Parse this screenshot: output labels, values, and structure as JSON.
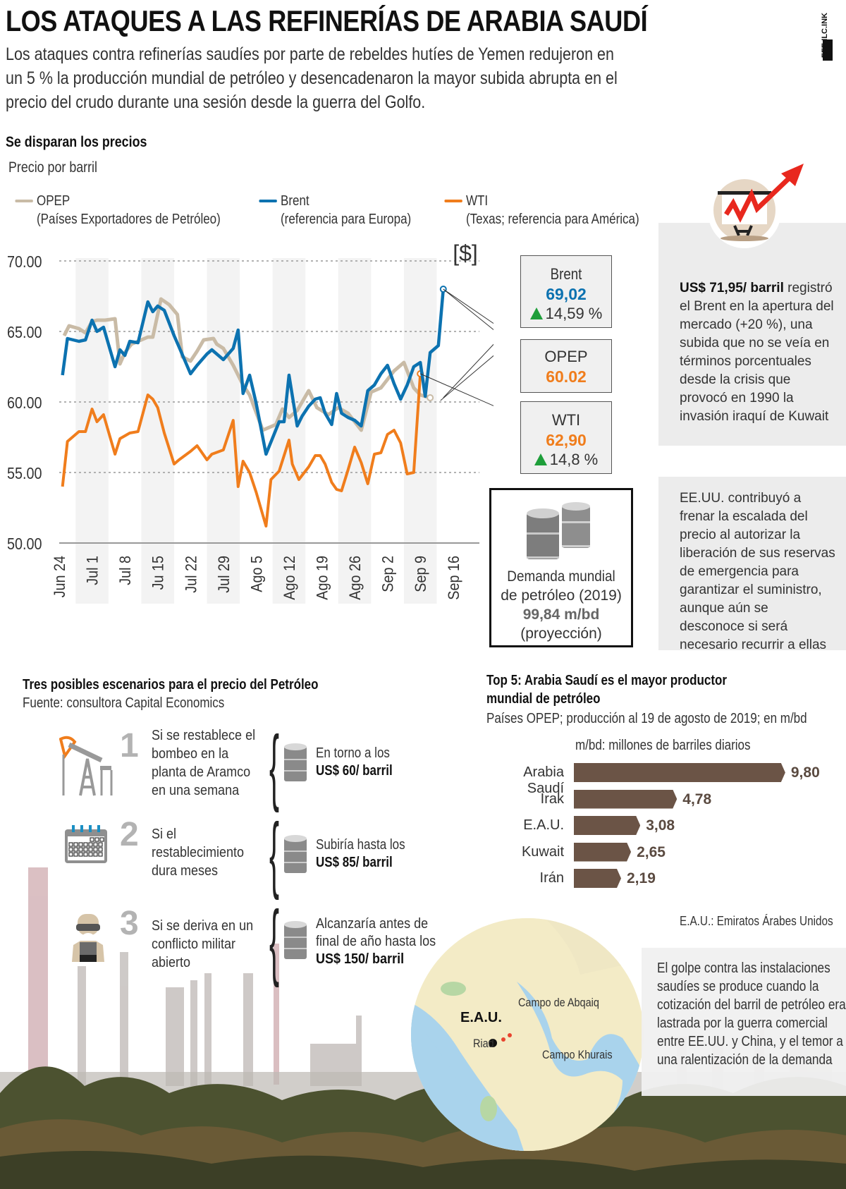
{
  "header": {
    "title": "LOS ATAQUES A LAS REFINERÍAS DE ARABIA SAUDÍ",
    "lead": "Los ataques contra refinerías saudíes por parte de rebeldes hutíes de Yemen redujeron en un 5 % la producción mundial de petróleo y desencadenaron la mayor subida abrupta en el precio del crudo durante una sesión desde la guerra del Golfo.",
    "logo_text": "EFE ILC.INK"
  },
  "chart_data": [
    {
      "type": "line",
      "title": "Se disparan los precios",
      "subtitle": "Precio por barril",
      "unit_label": "[$]",
      "xlabel": "",
      "ylabel": "",
      "ylim": [
        50,
        70
      ],
      "yticks": [
        "70.00",
        "65.00",
        "60.00",
        "55.00",
        "50.00"
      ],
      "ytick_values": [
        70,
        65,
        60,
        55,
        50
      ],
      "grid": true,
      "categories": [
        "Jun 24",
        "Jul 1",
        "Jul 8",
        "Ju 15",
        "Jul 22",
        "Jul 29",
        "Ago 5",
        "Ago 12",
        "Ago 19",
        "Ago 26",
        "Sep 2",
        "Sep 9",
        "Sep 16"
      ],
      "legend": [
        {
          "name": "OPEP",
          "desc": "(Países Exportadores de Petróleo)",
          "color": "#c9bba6"
        },
        {
          "name": "Brent",
          "desc": "(referencia para Europa)",
          "color": "#0c72b0"
        },
        {
          "name": "WTI",
          "desc": "(Texas; referencia para América)",
          "color": "#f07d1c"
        }
      ],
      "legend_position": "top",
      "x_span": [
        0,
        12.8
      ],
      "series": [
        {
          "name": "OPEP",
          "color": "#c9bba6",
          "x": [
            0.15,
            0.3,
            0.6,
            0.8,
            1.0,
            1.15,
            1.4,
            1.7,
            1.85,
            2.0,
            2.2,
            2.5,
            2.7,
            2.85,
            3.1,
            3.35,
            3.6,
            3.75,
            4.0,
            4.2,
            4.4,
            4.7,
            4.8,
            5.0,
            5.3,
            5.6,
            5.8,
            6.2,
            6.6,
            6.8,
            7.0,
            7.25,
            7.6,
            7.85,
            8.2,
            8.5,
            8.8,
            9.2,
            9.5,
            9.8,
            10.2,
            10.5,
            10.8,
            11.0,
            11.3,
            11.6,
            11.75,
            11.9,
            12.0
          ],
          "values": [
            64.7,
            65.4,
            65.2,
            64.9,
            65.7,
            65.8,
            65.8,
            65.9,
            62.7,
            63.5,
            64.1,
            64.4,
            64.6,
            64.6,
            67.3,
            66.9,
            66.2,
            63.2,
            62.9,
            63.6,
            64.4,
            64.5,
            64.1,
            63.8,
            62.6,
            61.2,
            60.5,
            58.0,
            58.4,
            59.5,
            58.9,
            59.4,
            60.8,
            59.6,
            59.1,
            59.6,
            59.2,
            58.0,
            60.7,
            61.0,
            62.2,
            62.8,
            61.0,
            60.5,
            60.3,
            null,
            null,
            null,
            null
          ]
        },
        {
          "name": "Brent",
          "color": "#0c72b0",
          "x": [
            0.1,
            0.25,
            0.6,
            0.8,
            1.0,
            1.15,
            1.35,
            1.7,
            1.85,
            2.0,
            2.15,
            2.4,
            2.7,
            2.85,
            3.0,
            3.2,
            3.5,
            3.65,
            4.0,
            4.2,
            4.5,
            4.65,
            5.0,
            5.3,
            5.45,
            5.6,
            5.8,
            6.0,
            6.3,
            6.7,
            6.85,
            7.0,
            7.25,
            7.4,
            7.6,
            7.8,
            7.95,
            8.1,
            8.3,
            8.45,
            8.6,
            8.8,
            9.0,
            9.2,
            9.4,
            9.6,
            9.8,
            10.0,
            10.2,
            10.4,
            10.6,
            10.8,
            11.0,
            11.15,
            11.3,
            11.55,
            11.7,
            11.85,
            12.05
          ],
          "values": [
            61.9,
            64.5,
            64.3,
            64.4,
            65.8,
            65.0,
            65.3,
            62.5,
            63.7,
            63.3,
            64.3,
            64.2,
            67.1,
            66.4,
            66.8,
            66.5,
            64.7,
            63.9,
            62.0,
            62.6,
            63.4,
            63.7,
            63.0,
            63.8,
            65.1,
            60.6,
            61.9,
            59.9,
            56.3,
            58.6,
            58.6,
            61.9,
            58.3,
            59.0,
            59.7,
            60.2,
            60.3,
            59.2,
            58.4,
            60.6,
            59.2,
            58.9,
            58.7,
            58.3,
            60.8,
            61.2,
            62.0,
            62.6,
            61.3,
            60.2,
            61.2,
            62.5,
            62.8,
            60.4,
            63.5,
            64.0,
            68.0,
            null,
            null
          ]
        },
        {
          "name": "WTI",
          "color": "#f07d1c",
          "x": [
            0.1,
            0.25,
            0.6,
            0.8,
            1.0,
            1.15,
            1.35,
            1.7,
            1.85,
            2.0,
            2.15,
            2.4,
            2.7,
            2.85,
            3.0,
            3.2,
            3.5,
            3.65,
            4.0,
            4.2,
            4.5,
            4.65,
            5.0,
            5.3,
            5.45,
            5.6,
            5.8,
            6.0,
            6.3,
            6.45,
            6.7,
            7.0,
            7.1,
            7.3,
            7.6,
            7.8,
            7.95,
            8.1,
            8.3,
            8.45,
            8.6,
            8.8,
            9.0,
            9.2,
            9.4,
            9.6,
            9.8,
            10.0,
            10.2,
            10.4,
            10.6,
            10.8,
            11.0,
            11.15,
            11.3,
            11.55,
            11.7,
            11.85,
            12.05
          ],
          "values": [
            54.0,
            57.2,
            57.9,
            57.9,
            59.5,
            58.6,
            59.1,
            56.3,
            57.4,
            57.6,
            57.8,
            57.9,
            60.5,
            60.2,
            59.6,
            57.8,
            55.6,
            55.9,
            56.5,
            56.9,
            55.9,
            56.3,
            56.6,
            58.7,
            54.0,
            55.8,
            55.0,
            53.6,
            51.2,
            54.5,
            55.1,
            57.3,
            55.6,
            54.5,
            55.4,
            56.2,
            56.2,
            55.6,
            54.3,
            53.8,
            53.7,
            55.2,
            56.8,
            55.7,
            54.2,
            56.3,
            56.4,
            57.7,
            58.0,
            57.1,
            54.9,
            55.0,
            62.0,
            null,
            null,
            null,
            null,
            null,
            null
          ]
        }
      ],
      "annotations": [
        {
          "series": "Brent",
          "label": "Brent",
          "value": "69,02",
          "change": "14,59 %",
          "value_color": "#0c72b0"
        },
        {
          "series": "OPEP",
          "label": "OPEP",
          "value": "60.02",
          "change": "",
          "value_color": "#f07d1c"
        },
        {
          "series": "WTI",
          "label": "WTI",
          "value": "62,90",
          "change": "14,8 %",
          "value_color": "#f07d1c"
        }
      ]
    },
    {
      "type": "bar",
      "orientation": "horizontal",
      "title": "Top 5: Arabia Saudí es el mayor productor mundial de petróleo",
      "subtitle": "Países OPEP; producción al 19 de agosto de 2019; en m/bd",
      "unit_note": "m/bd: millones de barriles diarios",
      "categories": [
        "Arabia Saudí",
        "Irak",
        "E.A.U.",
        "Kuwait",
        "Irán"
      ],
      "values": [
        9.8,
        4.78,
        3.08,
        2.65,
        2.19
      ],
      "value_labels": [
        "9,80",
        "4,78",
        "3,08",
        "2,65",
        "2,19"
      ],
      "xlim": [
        0,
        10
      ],
      "bar_color": "#6b5446",
      "footnote": "E.A.U.: Emiratos Árabes Unidos"
    }
  ],
  "demand": {
    "line1": "Demanda mundial",
    "line2": "de petróleo (2019)",
    "value": "99,84 m/bd",
    "note": "(proyección)"
  },
  "side_panels": {
    "brent_open_bold": "US$ 71,95/ barril",
    "brent_open_rest": " registró el Brent en la apertura del mercado (+20 %), una subida que no se veía en términos porcentuales desde la crisis que provocó en 1990 la invasión iraquí de Kuwait",
    "usa_reserves": "EE.UU. contribuyó a frenar la escalada del precio al autorizar la liberación de sus reservas de emergencia para garantizar el suministro, aunque aún se desconoce si será necesario recurrir a ellas"
  },
  "scenarios": {
    "heading": "Tres posibles escenarios para el precio del Petróleo",
    "source": "Fuente: consultora Capital Economics",
    "items": [
      {
        "num": "1",
        "icon": "oil-pump-icon",
        "condition": "Si se restablece el bombeo en la planta de Aramco en una semana",
        "result_pre": "En torno a los",
        "result_bold": "US$ 60/ barril"
      },
      {
        "num": "2",
        "icon": "calendar-icon",
        "condition": "Si el restablecimiento dura meses",
        "result_pre": "Subiría hasta los",
        "result_bold": "US$ 85/ barril"
      },
      {
        "num": "3",
        "icon": "soldier-icon",
        "condition": "Si se deriva en un conflicto militar abierto",
        "result_pre": "Alcanzaría antes de final de año hasta los",
        "result_bold": "US$ 150/ barril"
      }
    ]
  },
  "map": {
    "region_label": "E.A.U.",
    "capital": "Riad",
    "site1": "Campo de Abqaiq",
    "site2": "Campo Khurais"
  },
  "golpe_text": "El golpe contra las instalaciones saudíes se produce cuando la cotización del barril de petróleo era lastrada por la guerra comercial entre EE.UU. y China, y el temor a una ralentización de la demanda"
}
